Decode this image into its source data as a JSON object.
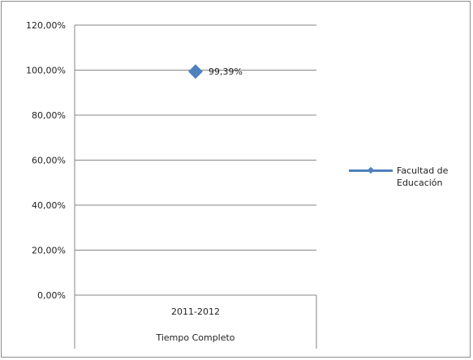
{
  "chart_data": {
    "type": "line",
    "categories": [
      "2011-2012"
    ],
    "category_group": "Tiempo Completo",
    "series": [
      {
        "name": "Facultad de Educación",
        "values": [
          0.9939
        ],
        "labels": [
          "99,39%"
        ],
        "color": "#4f81bd",
        "marker": "diamond"
      }
    ],
    "ylim": [
      0,
      1.2
    ],
    "yticks": [
      "0,00%",
      "20,00%",
      "40,00%",
      "60,00%",
      "80,00%",
      "100,00%",
      "120,00%"
    ],
    "grid": true,
    "legend_position": "right"
  }
}
